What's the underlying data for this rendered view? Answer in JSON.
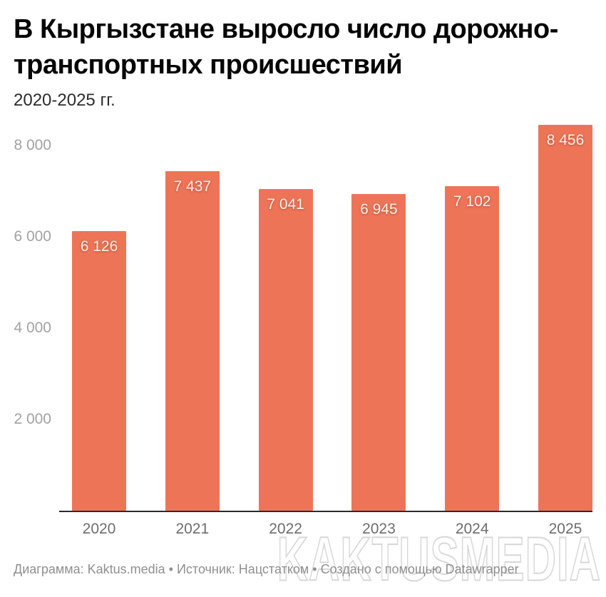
{
  "header": {
    "title_line1": "В Кыргызстане выросло число дорожно-",
    "title_line2": "транспортных происшествий",
    "subtitle": "2020-2025 гг."
  },
  "chart_data": {
    "type": "bar",
    "title": "В Кыргызстане выросло число дорожно-транспортных происшествий",
    "subtitle": "2020-2025 гг.",
    "categories": [
      "2020",
      "2021",
      "2022",
      "2023",
      "2024",
      "2025"
    ],
    "values": [
      6126,
      7437,
      7041,
      6945,
      7102,
      8456
    ],
    "value_labels": [
      "6 126",
      "7 437",
      "7 041",
      "6 945",
      "7 102",
      "8 456"
    ],
    "y_ticks": [
      {
        "value": 2000,
        "label": "2 000"
      },
      {
        "value": 4000,
        "label": "4 000"
      },
      {
        "value": 6000,
        "label": "6 000"
      },
      {
        "value": 8000,
        "label": "8 000"
      }
    ],
    "ylim": [
      0,
      8700
    ],
    "xlabel": "",
    "ylabel": "",
    "grid": false,
    "legend": "none",
    "bar_color": "#ee7458",
    "value_label_color": "#fcf0ea",
    "axis_line_color": "#2b2b2b"
  },
  "footer": {
    "credit": "Диаграмма: Kaktus.media • Источник: Нацстатком • Создано с помощью Datawrapper"
  },
  "watermark": {
    "text": "KAKTUSMEDIA"
  }
}
